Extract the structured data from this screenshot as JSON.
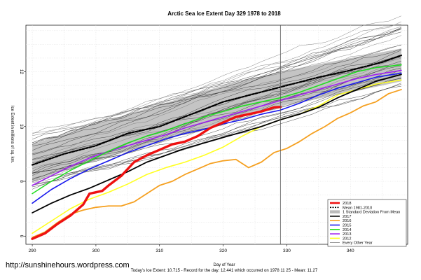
{
  "chart_data": {
    "type": "line",
    "title": "Arctic Sea Ice Extent Day 329 1978 to 2018",
    "xlabel": "Day of Year",
    "ylabel": "Ice Extent in millions of sq. km.",
    "xlim": [
      289,
      349
    ],
    "ylim": [
      5.7,
      13.7
    ],
    "xticks": [
      290,
      300,
      310,
      320,
      330,
      340
    ],
    "yticks": [
      6,
      8,
      10,
      12
    ],
    "grid": true,
    "vline_day": 329,
    "footnote": "Today's Ice Extent: 10.715  - Record for the day: 12.441 which occurred on 1978 11 25  - Mean: 11.27",
    "watermark": "http://sunshinehours.wordpress.com",
    "legend_position": "bottom-right",
    "legend": [
      {
        "label": "2018",
        "color": "#ee1111",
        "style": "line-thick"
      },
      {
        "label": "Mean 1981-2010",
        "color": "#000000",
        "style": "dashed"
      },
      {
        "label": "1 Standard Deviation From Mean",
        "color": "#bbbbbb",
        "style": "box"
      },
      {
        "label": "2017",
        "color": "#000000",
        "style": "line"
      },
      {
        "label": "2016",
        "color": "#f5a020",
        "style": "line"
      },
      {
        "label": "2015",
        "color": "#1a1aee",
        "style": "line"
      },
      {
        "label": "2014",
        "color": "#22dd22",
        "style": "line"
      },
      {
        "label": "2013",
        "color": "#a020f0",
        "style": "line"
      },
      {
        "label": "2012",
        "color": "#ffff22",
        "style": "line"
      },
      {
        "label": "Every Other Year",
        "color": "#555555",
        "style": "thin"
      }
    ],
    "std_band": {
      "x": [
        290,
        300,
        310,
        320,
        330,
        340,
        348
      ],
      "upper": [
        9.35,
        10.1,
        10.8,
        11.5,
        12.05,
        12.5,
        12.85
      ],
      "lower": [
        8.0,
        8.75,
        9.45,
        10.15,
        10.8,
        11.25,
        11.65
      ]
    },
    "series": [
      {
        "name": "Mean 1981-2010",
        "color": "#000000",
        "width": 2.2,
        "dash": "3,2",
        "x": [
          290,
          295,
          300,
          305,
          310,
          315,
          320,
          325,
          330,
          335,
          340,
          345,
          348
        ],
        "y": [
          8.6,
          9.0,
          9.3,
          9.75,
          10.0,
          10.45,
          10.9,
          11.2,
          11.5,
          11.8,
          12.05,
          12.35,
          12.6
        ]
      },
      {
        "name": "2016",
        "color": "#f5a020",
        "width": 1.8,
        "x": [
          290,
          292,
          294,
          296,
          298,
          300,
          302,
          304,
          306,
          308,
          310,
          312,
          314,
          316,
          318,
          320,
          322,
          324,
          326,
          328,
          330,
          332,
          334,
          336,
          338,
          340,
          342,
          344,
          346,
          348
        ],
        "y": [
          5.95,
          6.15,
          6.5,
          6.8,
          6.95,
          7.05,
          7.1,
          7.1,
          7.25,
          7.55,
          7.85,
          8.0,
          8.25,
          8.45,
          8.65,
          8.75,
          8.8,
          8.5,
          8.7,
          9.05,
          9.2,
          9.45,
          9.75,
          10.0,
          10.3,
          10.5,
          10.75,
          10.9,
          11.2,
          11.35
        ]
      },
      {
        "name": "2012",
        "color": "#ffff22",
        "width": 1.6,
        "x": [
          290,
          293,
          296,
          299,
          302,
          305,
          308,
          311,
          314,
          317,
          320,
          323,
          326,
          329,
          332,
          335,
          338,
          341,
          344,
          348
        ],
        "y": [
          6.1,
          6.55,
          7.0,
          7.35,
          7.6,
          7.9,
          8.25,
          8.5,
          8.7,
          8.95,
          9.25,
          9.65,
          10.0,
          10.25,
          10.45,
          10.75,
          11.15,
          11.35,
          11.55,
          11.7
        ]
      },
      {
        "name": "2017",
        "color": "#000000",
        "width": 1.8,
        "x": [
          290,
          293,
          296,
          299,
          302,
          305,
          308,
          311,
          314,
          317,
          320,
          323,
          326,
          329,
          332,
          335,
          338,
          341,
          344,
          348
        ],
        "y": [
          6.85,
          7.2,
          7.5,
          7.75,
          8.05,
          8.35,
          8.7,
          8.95,
          9.2,
          9.4,
          9.6,
          9.8,
          10.0,
          10.25,
          10.45,
          10.7,
          11.05,
          11.35,
          11.65,
          11.9
        ]
      },
      {
        "name": "2015",
        "color": "#1a1aee",
        "width": 1.6,
        "x": [
          290,
          293,
          296,
          299,
          302,
          305,
          308,
          311,
          314,
          317,
          320,
          323,
          326,
          329,
          332,
          335,
          338,
          341,
          344,
          348
        ],
        "y": [
          7.2,
          7.7,
          8.1,
          8.45,
          8.75,
          9.05,
          9.3,
          9.55,
          9.75,
          9.9,
          10.1,
          10.25,
          10.45,
          10.6,
          10.85,
          11.15,
          11.4,
          11.6,
          11.8,
          11.95
        ]
      },
      {
        "name": "2013",
        "color": "#a020f0",
        "width": 1.6,
        "x": [
          290,
          293,
          296,
          299,
          302,
          305,
          308,
          311,
          314,
          317,
          320,
          323,
          326,
          329,
          332,
          335,
          338,
          341,
          344,
          348
        ],
        "y": [
          7.85,
          8.2,
          8.55,
          8.85,
          9.1,
          9.3,
          9.5,
          9.7,
          9.95,
          10.15,
          10.35,
          10.55,
          10.75,
          10.95,
          11.15,
          11.35,
          11.55,
          11.75,
          11.9,
          12.05
        ]
      },
      {
        "name": "2014",
        "color": "#22dd22",
        "width": 1.6,
        "x": [
          290,
          293,
          296,
          299,
          302,
          305,
          308,
          311,
          314,
          317,
          320,
          323,
          326,
          329,
          332,
          335,
          338,
          341,
          344,
          348
        ],
        "y": [
          7.55,
          8.0,
          8.4,
          8.75,
          9.1,
          9.4,
          9.65,
          9.85,
          10.1,
          10.35,
          10.55,
          10.75,
          10.9,
          11.05,
          11.25,
          11.5,
          11.75,
          12.0,
          12.15,
          12.25
        ]
      },
      {
        "name": "2018",
        "color": "#ee1111",
        "width": 3.4,
        "x": [
          290,
          292,
          294,
          296,
          298,
          299,
          300,
          301,
          302,
          304,
          306,
          308,
          310,
          312,
          314,
          316,
          318,
          320,
          322,
          324,
          326,
          328,
          329
        ],
        "y": [
          5.9,
          6.1,
          6.45,
          6.75,
          7.15,
          7.55,
          7.6,
          7.65,
          7.85,
          8.2,
          8.7,
          8.95,
          9.15,
          9.35,
          9.45,
          9.65,
          9.95,
          10.15,
          10.35,
          10.45,
          10.55,
          10.7,
          10.715
        ]
      }
    ]
  }
}
